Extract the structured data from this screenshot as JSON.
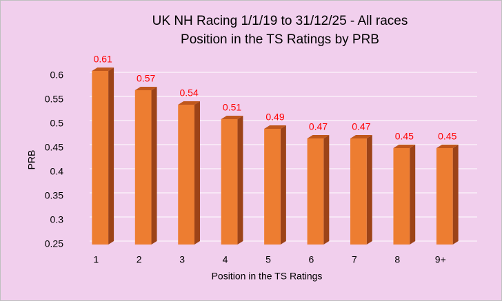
{
  "chart_data": {
    "type": "bar3d",
    "title": "UK NH Racing 1/1/19 to 31/12/25 - All races",
    "subtitle": "Position in the TS Ratings by PRB",
    "x_label": "Position in the TS Ratings",
    "y_label": "PRB",
    "categories": [
      "1",
      "2",
      "3",
      "4",
      "5",
      "6",
      "7",
      "8",
      "9+"
    ],
    "values": [
      0.61,
      0.57,
      0.54,
      0.51,
      0.49,
      0.47,
      0.47,
      0.45,
      0.45
    ],
    "color": "#ed7d31",
    "label_color": "#ff0000",
    "ylim": [
      0.25,
      0.625
    ],
    "yticks": [
      0.25,
      0.3,
      0.35,
      0.4,
      0.45,
      0.5,
      0.55,
      0.6
    ],
    "grid": true
  }
}
